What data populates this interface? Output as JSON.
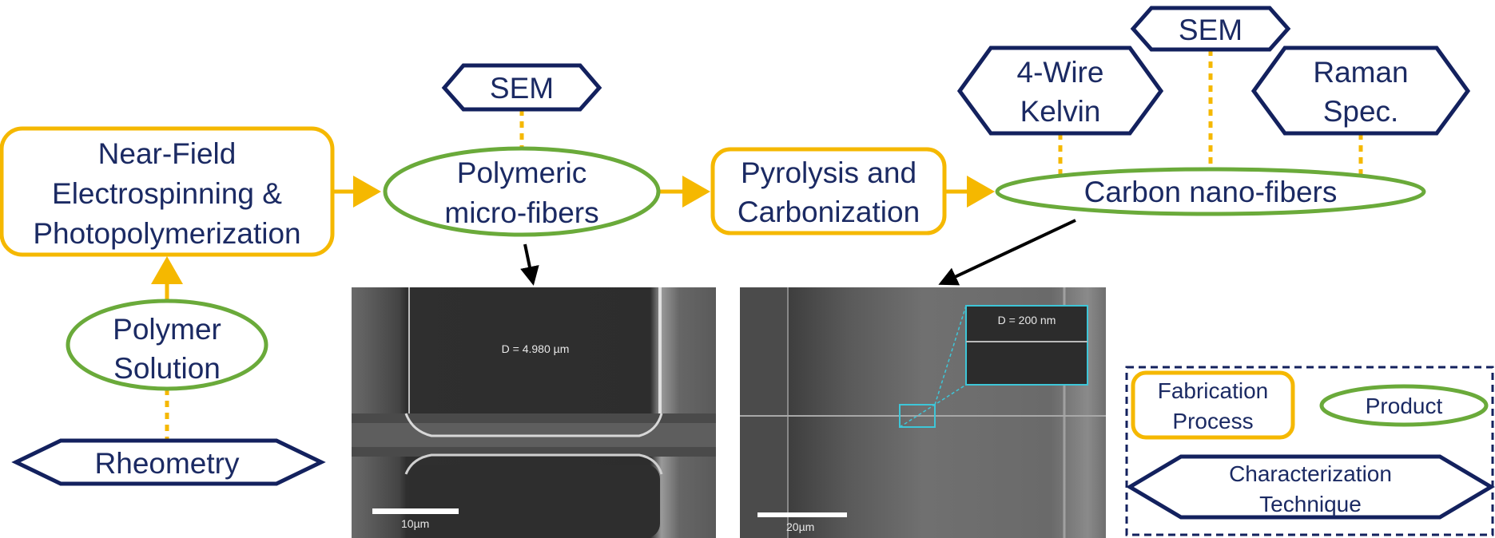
{
  "colors": {
    "process": "#f5b800",
    "product": "#6aaa3a",
    "technique": "#13215e",
    "text": "#1b2a63",
    "arrow": "#000000",
    "inset": "#3ec6d8"
  },
  "nodes": {
    "nfes": {
      "lines": [
        "Near-Field",
        "Electrospinning &",
        "Photopolymerization"
      ]
    },
    "polymer_solution": {
      "lines": [
        "Polymer",
        "Solution"
      ]
    },
    "rheometry": {
      "lines": [
        "Rheometry"
      ]
    },
    "polymeric_fibers": {
      "lines": [
        "Polymeric",
        "micro-fibers"
      ]
    },
    "sem_1": {
      "lines": [
        "SEM"
      ]
    },
    "pyrolysis": {
      "lines": [
        "Pyrolysis and",
        "Carbonization"
      ]
    },
    "carbon_fibers": {
      "lines": [
        "Carbon nano-fibers"
      ]
    },
    "four_wire": {
      "lines": [
        "4-Wire",
        "Kelvin"
      ]
    },
    "sem_2": {
      "lines": [
        "SEM"
      ]
    },
    "raman": {
      "lines": [
        "Raman",
        "Spec."
      ]
    }
  },
  "micrographs": {
    "left": {
      "diameter_label": "D = 4.980 µm",
      "scale_label": "10µm"
    },
    "right": {
      "diameter_label": "D = 200 nm",
      "scale_label": "20µm"
    }
  },
  "legend": {
    "process": [
      "Fabrication",
      "Process"
    ],
    "product": [
      "Product"
    ],
    "technique": [
      "Characterization",
      "Technique"
    ]
  }
}
